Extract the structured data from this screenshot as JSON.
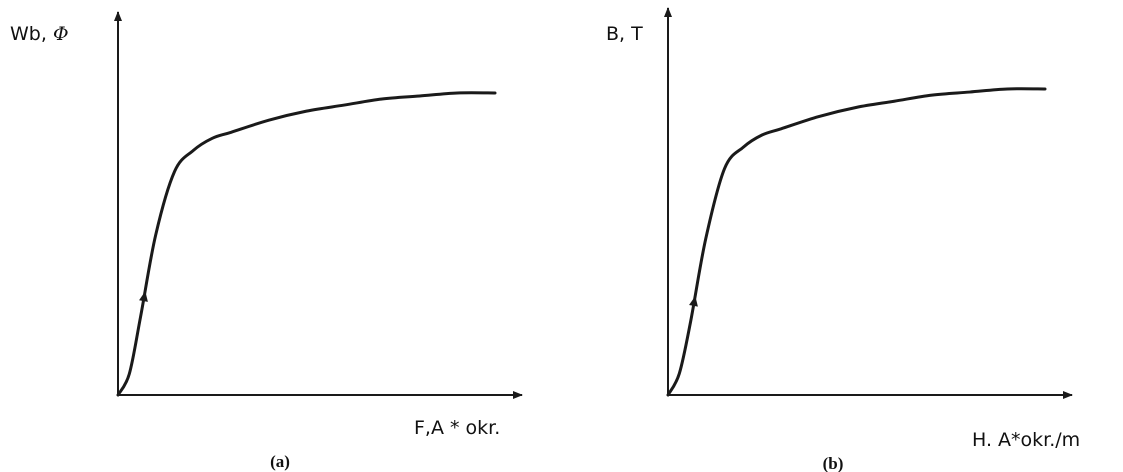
{
  "chart_data": [
    {
      "type": "line",
      "panel_label": "(a)",
      "ylabel_prefix": "Wb, ",
      "ylabel_symbol": "Φ",
      "xlabel": "F,A * okr.",
      "x": [
        0,
        0.03,
        0.06,
        0.1,
        0.15,
        0.2,
        0.25,
        0.3,
        0.4,
        0.5,
        0.6,
        0.7,
        0.8,
        0.9,
        1.0
      ],
      "y": [
        0,
        0.07,
        0.26,
        0.53,
        0.74,
        0.81,
        0.85,
        0.87,
        0.91,
        0.94,
        0.96,
        0.98,
        0.99,
        1.0,
        1.0
      ],
      "arrow_at_x": 0.07,
      "grid": false
    },
    {
      "type": "line",
      "panel_label": "(b)",
      "ylabel": "B, T",
      "xlabel": "H. A*okr./m",
      "x": [
        0,
        0.03,
        0.06,
        0.1,
        0.15,
        0.2,
        0.25,
        0.3,
        0.4,
        0.5,
        0.6,
        0.7,
        0.8,
        0.9,
        1.0
      ],
      "y": [
        0,
        0.07,
        0.24,
        0.51,
        0.74,
        0.81,
        0.85,
        0.87,
        0.91,
        0.94,
        0.96,
        0.98,
        0.99,
        1.0,
        1.0
      ],
      "arrow_at_x": 0.07,
      "grid": false
    }
  ]
}
